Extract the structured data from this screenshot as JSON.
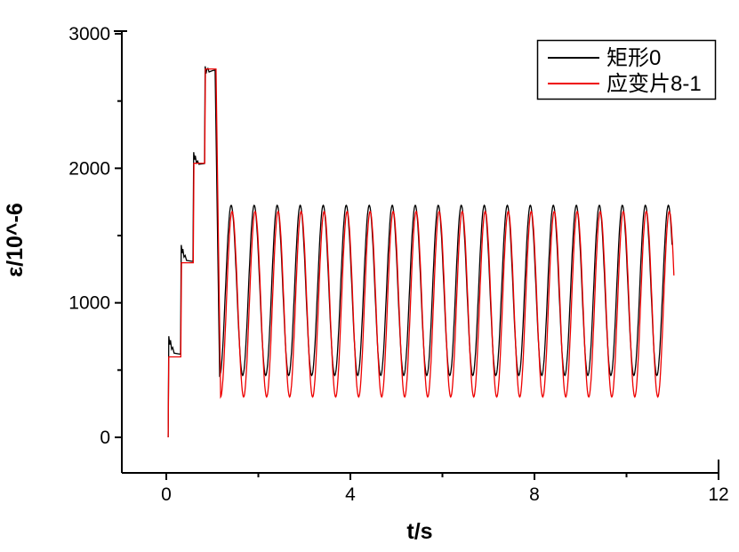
{
  "chart_data": {
    "type": "line",
    "title": "",
    "xlabel": "t/s",
    "ylabel": "ε/10^-6",
    "xlim": [
      -1,
      12
    ],
    "ylim": [
      -260,
      3040
    ],
    "x_major_ticks": [
      0,
      4,
      8,
      12
    ],
    "x_minor_ticks": [
      2,
      6,
      10
    ],
    "y_major_ticks": [
      0,
      1000,
      2000,
      3000
    ],
    "y_minor_ticks": [
      500,
      1500,
      2500
    ],
    "grid": false,
    "legend_position": "top-right",
    "description": "Step-ramp loading to ~2740 microstrain followed by steady ~2 Hz cyclic oscillation until t≈11 s",
    "series": [
      {
        "name": "矩形0",
        "color": "#000000",
        "ramp_points": [
          [
            0.04,
            0
          ],
          [
            0.055,
            752
          ],
          [
            0.075,
            690
          ],
          [
            0.09,
            722
          ],
          [
            0.115,
            655
          ],
          [
            0.14,
            668
          ],
          [
            0.17,
            626
          ],
          [
            0.31,
            618
          ],
          [
            0.325,
            1430
          ],
          [
            0.345,
            1370
          ],
          [
            0.36,
            1400
          ],
          [
            0.385,
            1340
          ],
          [
            0.41,
            1352
          ],
          [
            0.44,
            1315
          ],
          [
            0.58,
            1308
          ],
          [
            0.595,
            2120
          ],
          [
            0.615,
            2064
          ],
          [
            0.63,
            2094
          ],
          [
            0.655,
            2040
          ],
          [
            0.68,
            2054
          ],
          [
            0.71,
            2030
          ],
          [
            0.83,
            2036
          ],
          [
            0.845,
            2758
          ],
          [
            0.865,
            2705
          ],
          [
            0.88,
            2734
          ],
          [
            0.905,
            2742
          ],
          [
            0.93,
            2716
          ],
          [
            1.0,
            2726
          ],
          [
            1.06,
            2730
          ]
        ],
        "oscillation": {
          "t_start": 1.16,
          "t_end": 10.99,
          "period": 0.5,
          "first_peak_t": 1.41,
          "max": 1725,
          "min": 460
        }
      },
      {
        "name": "应变片8-1",
        "color": "#ee0000",
        "ramp_points": [
          [
            0.04,
            0
          ],
          [
            0.055,
            598
          ],
          [
            0.315,
            598
          ],
          [
            0.33,
            1298
          ],
          [
            0.585,
            1298
          ],
          [
            0.6,
            2038
          ],
          [
            0.835,
            2038
          ],
          [
            0.85,
            2738
          ],
          [
            1.08,
            2738
          ]
        ],
        "oscillation": {
          "t_start": 1.18,
          "t_end": 11.03,
          "period": 0.5,
          "first_peak_t": 1.43,
          "max": 1680,
          "min": 300
        }
      }
    ]
  },
  "colors": {
    "axis": "#000000",
    "background": "#ffffff",
    "legend_border": "#000000"
  }
}
